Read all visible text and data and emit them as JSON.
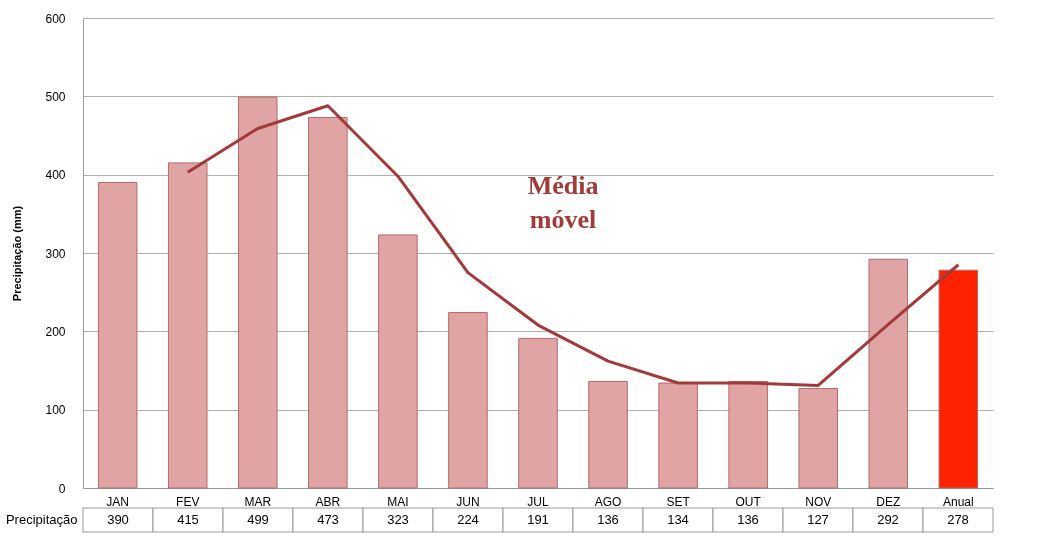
{
  "chart_data": {
    "type": "bar",
    "ylabel": "Precipitação (mm)",
    "categories": [
      "JAN",
      "FEV",
      "MAR",
      "ABR",
      "MAI",
      "JUN",
      "JUL",
      "AGO",
      "SET",
      "OUT",
      "NOV",
      "DEZ",
      "Anual"
    ],
    "series": [
      {
        "name": "Precipitação",
        "colors": [
          "#e0a4a4",
          "#e0a4a4",
          "#e0a4a4",
          "#e0a4a4",
          "#e0a4a4",
          "#e0a4a4",
          "#e0a4a4",
          "#e0a4a4",
          "#e0a4a4",
          "#e0a4a4",
          "#e0a4a4",
          "#e0a4a4",
          "#ff2200"
        ],
        "values": [
          390,
          415,
          499,
          473,
          323,
          224,
          191,
          136,
          134,
          136,
          127,
          292,
          278
        ],
        "value_labels": [
          "390",
          "415",
          "499",
          "473",
          "323",
          "224",
          "191",
          "136",
          "134",
          "136",
          "127",
          "292",
          "278"
        ]
      },
      {
        "name": "Média móvel",
        "type": "line",
        "color": "#a33a3a",
        "values": [
          null,
          403,
          459,
          488,
          398,
          275,
          208,
          162,
          134,
          134,
          131,
          209,
          285
        ]
      }
    ],
    "ylim": [
      0,
      600
    ],
    "yticks": [
      0,
      100,
      200,
      300,
      400,
      500,
      600
    ],
    "grid": "y"
  }
}
